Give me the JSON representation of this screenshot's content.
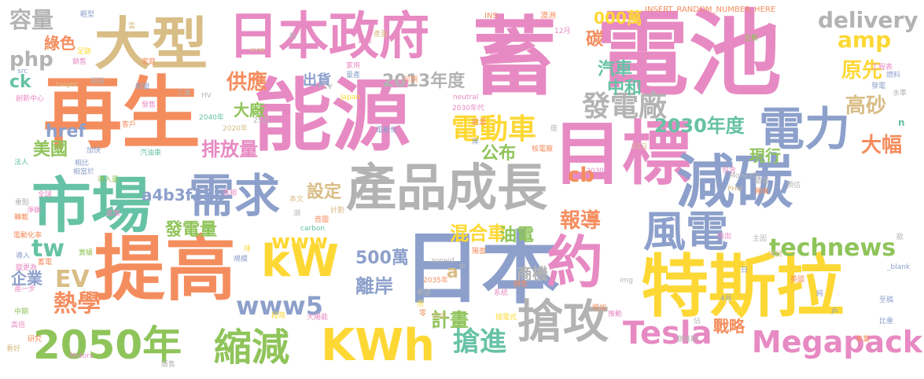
{
  "palette": {
    "orange": "#f48d5e",
    "pink": "#e78ac3",
    "tan": "#d9bd86",
    "green": "#8fc45a",
    "blue": "#8da0cb",
    "yellow": "#fdd835",
    "grey": "#b3b3b3",
    "teal": "#66c2a5"
  },
  "words": [
    {
      "text": "電池",
      "color": "pink"
    },
    {
      "text": "蓄",
      "color": "pink"
    },
    {
      "text": "再生",
      "color": "orange"
    },
    {
      "text": "能源",
      "color": "pink"
    },
    {
      "text": "日本政府",
      "color": "pink"
    },
    {
      "text": "大型",
      "color": "tan"
    },
    {
      "text": "日本",
      "color": "blue"
    },
    {
      "text": "特斯拉",
      "color": "yellow"
    },
    {
      "text": "目標",
      "color": "pink"
    },
    {
      "text": "減碳",
      "color": "blue"
    },
    {
      "text": "提高",
      "color": "orange"
    },
    {
      "text": "市場",
      "color": "teal"
    },
    {
      "text": "產品成長",
      "color": "grey"
    },
    {
      "text": "約",
      "color": "pink"
    },
    {
      "text": "需求",
      "color": "blue"
    },
    {
      "text": "2050年",
      "color": "green"
    },
    {
      "text": "KWh",
      "color": "yellow"
    },
    {
      "text": "縮減",
      "color": "green"
    },
    {
      "text": "搶攻",
      "color": "grey"
    },
    {
      "text": "電力",
      "color": "blue"
    },
    {
      "text": "風電",
      "color": "blue"
    },
    {
      "text": "kW",
      "color": "yellow"
    },
    {
      "text": "Megapack",
      "color": "pink"
    },
    {
      "text": "Tesla",
      "color": "pink"
    },
    {
      "text": "delivery",
      "color": "grey"
    },
    {
      "text": "發電廠",
      "color": "grey"
    },
    {
      "text": "電動車",
      "color": "yellow"
    },
    {
      "text": "technews",
      "color": "green"
    },
    {
      "text": "搶進",
      "color": "teal"
    },
    {
      "text": "www5",
      "color": "blue"
    },
    {
      "text": "2030年度",
      "color": "teal"
    },
    {
      "text": "2013年度",
      "color": "grey"
    },
    {
      "text": "500萬",
      "color": "blue"
    },
    {
      "text": "熱學",
      "color": "orange"
    },
    {
      "text": "容量",
      "color": "grey"
    },
    {
      "text": "php",
      "color": "grey"
    },
    {
      "text": "amp",
      "color": "yellow"
    },
    {
      "text": "供應",
      "color": "orange"
    },
    {
      "text": "排放量",
      "color": "pink"
    },
    {
      "text": "www",
      "color": "yellow"
    },
    {
      "text": "tw",
      "color": "teal"
    },
    {
      "text": "EV",
      "color": "tan"
    },
    {
      "text": "cb",
      "color": "orange"
    },
    {
      "text": "報導",
      "color": "orange"
    },
    {
      "text": "混合車",
      "color": "yellow"
    },
    {
      "text": "離岸",
      "color": "blue"
    },
    {
      "text": "高砂",
      "color": "tan"
    },
    {
      "text": "原先",
      "color": "yellow"
    },
    {
      "text": "大幅",
      "color": "orange"
    },
    {
      "text": "綠色",
      "color": "orange"
    },
    {
      "text": "發電量",
      "color": "green"
    },
    {
      "text": "計畫",
      "color": "green"
    },
    {
      "text": "000萬",
      "color": "yellow"
    },
    {
      "text": "汽車",
      "color": "teal"
    },
    {
      "text": "中和",
      "color": "teal"
    },
    {
      "text": "現行",
      "color": "green"
    },
    {
      "text": "公布",
      "color": "green"
    },
    {
      "text": "油電",
      "color": "green"
    },
    {
      "text": "戰略",
      "color": "orange"
    },
    {
      "text": "商機",
      "color": "grey"
    },
    {
      "text": "設定",
      "color": "tan"
    },
    {
      "text": "企業",
      "color": "blue"
    },
    {
      "text": "a4b3f35b",
      "color": "blue"
    },
    {
      "text": "大廠",
      "color": "green"
    },
    {
      "text": "出貨",
      "color": "blue"
    },
    {
      "text": "href",
      "color": "blue"
    },
    {
      "text": "美國",
      "color": "green"
    },
    {
      "text": "ck",
      "color": "teal"
    },
    {
      "text": "碳",
      "color": "orange"
    },
    {
      "text": "a",
      "color": "tan"
    },
    {
      "text": "INSERT_RANDOM_NUMBER_HERE",
      "color": "orange"
    },
    {
      "text": "INS",
      "color": "orange"
    },
    {
      "text": "澳洲",
      "color": "orange"
    },
    {
      "text": "12月",
      "color": "pink"
    },
    {
      "text": "電池車",
      "color": "pink"
    },
    {
      "text": "MoneyDJ",
      "color": "grey"
    },
    {
      "text": "Japan",
      "color": "yellow"
    },
    {
      "text": "2030年代",
      "color": "pink"
    },
    {
      "text": "neutral",
      "color": "pink"
    },
    {
      "text": "carbon",
      "color": "teal"
    },
    {
      "text": "zoneid",
      "color": "grey"
    },
    {
      "text": "Motors",
      "color": "pink"
    },
    {
      "text": "avw",
      "color": "tan"
    },
    {
      "text": "FCV",
      "color": "grey"
    },
    {
      "text": "HV",
      "color": "grey"
    },
    {
      "text": "PHV",
      "color": "tan"
    },
    {
      "text": "target",
      "color": "tan"
    },
    {
      "text": "img",
      "color": "grey"
    },
    {
      "text": "_blank",
      "color": "blue"
    },
    {
      "text": "src",
      "color": "blue"
    },
    {
      "text": "全數",
      "color": "green"
    },
    {
      "text": "工程表",
      "color": "pink"
    },
    {
      "text": "發電",
      "color": "blue"
    },
    {
      "text": "燃料",
      "color": "blue"
    },
    {
      "text": "水準",
      "color": "grey"
    },
    {
      "text": "核電廠",
      "color": "orange"
    },
    {
      "text": "2030年",
      "color": "pink"
    },
    {
      "text": "2035年",
      "color": "orange"
    },
    {
      "text": "2040年",
      "color": "teal"
    },
    {
      "text": "2020年",
      "color": "tan"
    },
    {
      "text": "22日",
      "color": "tan"
    },
    {
      "text": "25日",
      "color": "grey"
    },
    {
      "text": "4月",
      "color": "blue"
    },
    {
      "text": "汽油車",
      "color": "teal"
    },
    {
      "text": "創新中心",
      "color": "pink"
    },
    {
      "text": "電動化率",
      "color": "orange"
    },
    {
      "text": "導入量",
      "color": "green"
    },
    {
      "text": "插電式",
      "color": "yellow"
    },
    {
      "text": "輕型",
      "color": "blue"
    },
    {
      "text": "需",
      "color": "tan"
    },
    {
      "text": "足跡",
      "color": "yellow"
    },
    {
      "text": "銷售",
      "color": "pink"
    },
    {
      "text": "家庭",
      "color": "orange"
    },
    {
      "text": "期望",
      "color": "grey"
    },
    {
      "text": "新聞",
      "color": "blue"
    },
    {
      "text": "工業",
      "color": "grey"
    },
    {
      "text": "發售",
      "color": "pink"
    },
    {
      "text": "客戶",
      "color": "orange"
    },
    {
      "text": "加快",
      "color": "blue"
    },
    {
      "text": "首相",
      "color": "pink"
    },
    {
      "text": "本文",
      "color": "tan"
    },
    {
      "text": "首圖",
      "color": "orange"
    },
    {
      "text": "湖",
      "color": "grey"
    },
    {
      "text": "計劃",
      "color": "tan"
    },
    {
      "text": "規模",
      "color": "blue"
    },
    {
      "text": "實績",
      "color": "green"
    },
    {
      "text": "產業",
      "color": "pink"
    },
    {
      "text": "研究",
      "color": "orange"
    },
    {
      "text": "看好",
      "color": "tan"
    },
    {
      "text": "販售",
      "color": "grey"
    },
    {
      "text": "比重",
      "color": "blue"
    },
    {
      "text": "事業",
      "color": "orange"
    },
    {
      "text": "巔峰期",
      "color": "grey"
    },
    {
      "text": "推動",
      "color": "pink"
    },
    {
      "text": "增加",
      "color": "orange"
    },
    {
      "text": "重點",
      "color": "grey"
    },
    {
      "text": "轉載",
      "color": "orange"
    },
    {
      "text": "淨碳",
      "color": "pink"
    },
    {
      "text": "導入",
      "color": "blue"
    },
    {
      "text": "變更為",
      "color": "pink"
    },
    {
      "text": "進一步",
      "color": "pink"
    },
    {
      "text": "中期",
      "color": "green"
    },
    {
      "text": "高倍",
      "color": "pink"
    },
    {
      "text": "全球",
      "color": "pink"
    },
    {
      "text": "法人",
      "color": "teal"
    },
    {
      "text": "相比",
      "color": "blue"
    },
    {
      "text": "相當於",
      "color": "blue"
    },
    {
      "text": "指出",
      "color": "pink"
    },
    {
      "text": "主因",
      "color": "grey"
    },
    {
      "text": "項目",
      "color": "tan"
    },
    {
      "text": "英國",
      "color": "orange"
    },
    {
      "text": "佔",
      "color": "grey"
    },
    {
      "text": "純",
      "color": "blue"
    },
    {
      "text": "至稿",
      "color": "blue"
    },
    {
      "text": "包含",
      "color": "pink"
    },
    {
      "text": "擁有",
      "color": "orange"
    },
    {
      "text": "預估",
      "color": "grey"
    },
    {
      "text": "續電",
      "color": "grey"
    },
    {
      "text": "希望",
      "color": "grey"
    },
    {
      "text": "系統",
      "color": "pink"
    },
    {
      "text": "銷售",
      "color": "orange"
    },
    {
      "text": "能源",
      "color": "orange"
    },
    {
      "text": "電動化",
      "color": "blue"
    },
    {
      "text": "排",
      "color": "yellow"
    },
    {
      "text": "新",
      "color": "grey"
    },
    {
      "text": "零",
      "color": "orange"
    },
    {
      "text": "新車",
      "color": "tan"
    },
    {
      "text": "大陽能",
      "color": "pink"
    },
    {
      "text": "蓄量",
      "color": "pink"
    },
    {
      "text": "段階",
      "color": "yellow"
    },
    {
      "text": "產量",
      "color": "tan"
    },
    {
      "text": "可期",
      "color": "orange"
    },
    {
      "text": "家用",
      "color": "pink"
    },
    {
      "text": "量產",
      "color": "blue"
    },
    {
      "text": "座",
      "color": "grey"
    },
    {
      "text": "岸",
      "color": "blue"
    },
    {
      "text": "日",
      "color": "blue"
    },
    {
      "text": "中",
      "color": "grey"
    },
    {
      "text": "倍",
      "color": "yellow"
    },
    {
      "text": "戶",
      "color": "blue"
    },
    {
      "text": "陽面",
      "color": "orange"
    },
    {
      "text": "n",
      "color": "teal"
    },
    {
      "text": "歐",
      "color": "grey"
    },
    {
      "text": "蓄電",
      "color": "orange"
    }
  ]
}
